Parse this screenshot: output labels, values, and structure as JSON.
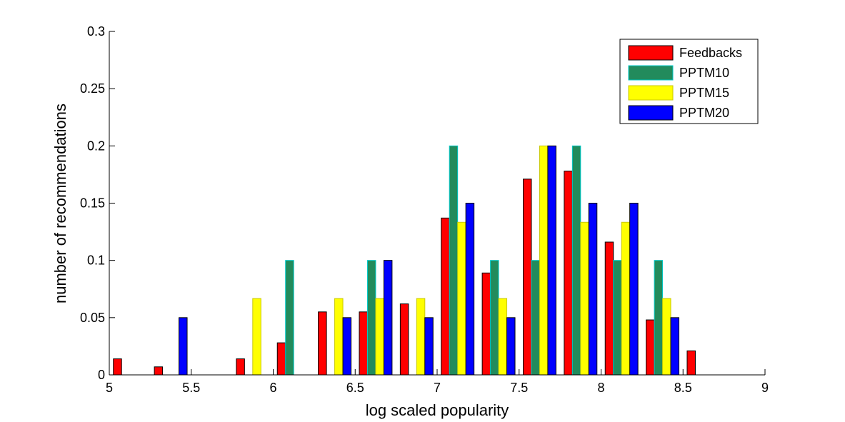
{
  "chart_data": {
    "type": "bar",
    "title": "",
    "xlabel": "log scaled popularity",
    "ylabel": "number of recommendations",
    "xlim": [
      5,
      9
    ],
    "ylim": [
      0,
      0.3
    ],
    "xticks": [
      "5",
      "5.5",
      "6",
      "6.5",
      "7",
      "7.5",
      "8",
      "8.5",
      "9"
    ],
    "yticks": [
      "0",
      "0.05",
      "0.1",
      "0.15",
      "0.2",
      "0.25",
      "0.3"
    ],
    "grid": false,
    "legend_position": "top-right",
    "x": [
      5.125,
      5.375,
      5.625,
      5.875,
      6.125,
      6.375,
      6.625,
      6.875,
      7.125,
      7.375,
      7.625,
      7.875,
      8.125,
      8.375,
      8.625,
      8.875
    ],
    "series": [
      {
        "name": "Feedbacks",
        "color": "#ff0000",
        "edge": "#000000",
        "values": [
          0.014,
          0.007,
          0,
          0.014,
          0.028,
          0.055,
          0.055,
          0.062,
          0.137,
          0.089,
          0.171,
          0.178,
          0.116,
          0.048,
          0.021,
          0
        ]
      },
      {
        "name": "PPTM10",
        "color": "#228b5c",
        "edge": "#00c8c8",
        "values": [
          0,
          0,
          0,
          0,
          0.1,
          0,
          0.1,
          0,
          0.2,
          0.1,
          0.1,
          0.2,
          0.1,
          0.1,
          0,
          0
        ]
      },
      {
        "name": "PPTM15",
        "color": "#ffff00",
        "edge": "#c8c800",
        "values": [
          0,
          0,
          0,
          0.0667,
          0,
          0.0667,
          0.0667,
          0.0667,
          0.1333,
          0.0667,
          0.2,
          0.1333,
          0.1333,
          0.0667,
          0,
          0
        ]
      },
      {
        "name": "PPTM20",
        "color": "#0000ff",
        "edge": "#000000",
        "values": [
          0,
          0.05,
          0,
          0,
          0,
          0.05,
          0.1,
          0.05,
          0.15,
          0.05,
          0.2,
          0.15,
          0.15,
          0.05,
          0,
          0
        ]
      }
    ]
  }
}
